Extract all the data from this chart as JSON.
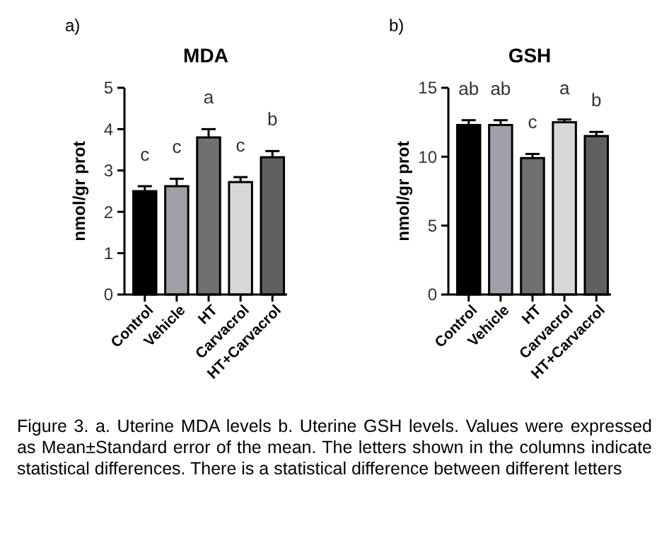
{
  "chart_data": [
    {
      "type": "bar",
      "title": "MDA",
      "ylabel": "nmol/gr prot",
      "categories": [
        "Control",
        "Vehicle",
        "HT",
        "Carvacrol",
        "HT+Carvacrol"
      ],
      "values": [
        2.5,
        2.62,
        3.8,
        2.72,
        3.32
      ],
      "errors": [
        0.12,
        0.18,
        0.2,
        0.12,
        0.15
      ],
      "colors": [
        "#000000",
        "#a0a0a8",
        "#707070",
        "#d8d8d8",
        "#606060"
      ],
      "ylim": [
        0,
        5
      ],
      "yticks": [
        0,
        1,
        2,
        3,
        4,
        5
      ],
      "annotations": [
        "a)",
        "c",
        "c",
        "a",
        "c",
        "b",
        "Figure 3. a. Uterine MDA levels b. Uterine GSH levels. Values were expressed as Mean±Standard error of the mean. The letters shown in the columns indicate statistical differences. There is a statistical difference between different letters"
      ]
    },
    {
      "type": "bar",
      "title": "GSH",
      "ylabel": "nmol/gr prot",
      "categories": [
        "Control",
        "Vehicle",
        "HT",
        "Carvacrol",
        "HT+Carvacrol"
      ],
      "values": [
        12.3,
        12.3,
        9.9,
        12.5,
        11.5
      ],
      "errors": [
        0.35,
        0.35,
        0.3,
        0.2,
        0.3
      ],
      "colors": [
        "#000000",
        "#a0a0a8",
        "#707070",
        "#d8d8d8",
        "#606060"
      ],
      "ylim": [
        0,
        15
      ],
      "yticks": [
        0,
        5,
        10,
        15
      ],
      "annotations": [
        "b)",
        "ab",
        "ab",
        "c",
        "a",
        "b"
      ]
    }
  ]
}
